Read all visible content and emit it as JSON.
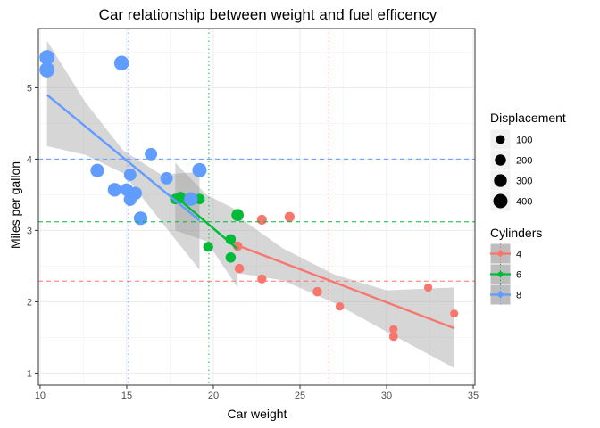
{
  "chart_data": {
    "type": "scatter",
    "title": "Car relationship between weight and fuel efficency",
    "xlabel": "Car weight",
    "ylabel": "Miles per gallon",
    "xlim": [
      9.9,
      35.1
    ],
    "ylim": [
      0.83,
      5.83
    ],
    "xticks": [
      10,
      15,
      20,
      25,
      30,
      35
    ],
    "yticks": [
      1,
      2,
      3,
      4,
      5
    ],
    "grid": true,
    "colors": {
      "4": "#F8766D",
      "6": "#00BA38",
      "8": "#619CFF"
    },
    "series": [
      {
        "name": "4",
        "points": [
          {
            "x": 22.8,
            "y": 2.32,
            "disp": 108
          },
          {
            "x": 24.4,
            "y": 3.19,
            "disp": 146.7
          },
          {
            "x": 22.8,
            "y": 3.15,
            "disp": 140.8
          },
          {
            "x": 32.4,
            "y": 2.2,
            "disp": 78.7
          },
          {
            "x": 30.4,
            "y": 1.615,
            "disp": 75.7
          },
          {
            "x": 33.9,
            "y": 1.835,
            "disp": 71.1
          },
          {
            "x": 21.5,
            "y": 2.465,
            "disp": 120.1
          },
          {
            "x": 27.3,
            "y": 1.935,
            "disp": 79
          },
          {
            "x": 26.0,
            "y": 2.14,
            "disp": 120.3
          },
          {
            "x": 30.4,
            "y": 1.513,
            "disp": 95.1
          },
          {
            "x": 21.4,
            "y": 2.78,
            "disp": 121
          }
        ],
        "fit": {
          "x": [
            21.4,
            33.9
          ],
          "y": [
            2.79,
            1.63
          ]
        },
        "band": {
          "x": [
            21.4,
            24,
            27,
            30,
            33.9
          ],
          "upper": [
            3.2,
            2.75,
            2.38,
            2.16,
            2.2
          ],
          "lower": [
            2.4,
            2.3,
            1.98,
            1.58,
            1.07
          ]
        }
      },
      {
        "name": "6",
        "points": [
          {
            "x": 21.0,
            "y": 2.62,
            "disp": 160
          },
          {
            "x": 21.0,
            "y": 2.875,
            "disp": 160
          },
          {
            "x": 21.4,
            "y": 3.215,
            "disp": 258
          },
          {
            "x": 18.1,
            "y": 3.46,
            "disp": 225
          },
          {
            "x": 19.2,
            "y": 3.44,
            "disp": 167.6
          },
          {
            "x": 17.8,
            "y": 3.44,
            "disp": 167.6
          },
          {
            "x": 19.7,
            "y": 2.77,
            "disp": 145
          }
        ],
        "fit": {
          "x": [
            17.8,
            21.4
          ],
          "y": [
            3.48,
            2.74
          ]
        },
        "band": {
          "x": [
            17.8,
            19.6,
            21.4
          ],
          "upper": [
            3.95,
            3.5,
            3.28
          ],
          "lower": [
            3.0,
            2.85,
            2.2
          ]
        }
      },
      {
        "name": "8",
        "points": [
          {
            "x": 18.7,
            "y": 3.44,
            "disp": 360
          },
          {
            "x": 14.3,
            "y": 3.57,
            "disp": 360
          },
          {
            "x": 16.4,
            "y": 4.07,
            "disp": 275.8
          },
          {
            "x": 17.3,
            "y": 3.73,
            "disp": 275.8
          },
          {
            "x": 15.2,
            "y": 3.78,
            "disp": 275.8
          },
          {
            "x": 10.4,
            "y": 5.25,
            "disp": 472
          },
          {
            "x": 10.4,
            "y": 5.424,
            "disp": 460
          },
          {
            "x": 14.7,
            "y": 5.345,
            "disp": 440
          },
          {
            "x": 15.5,
            "y": 3.52,
            "disp": 318
          },
          {
            "x": 15.2,
            "y": 3.435,
            "disp": 304
          },
          {
            "x": 13.3,
            "y": 3.84,
            "disp": 350
          },
          {
            "x": 19.2,
            "y": 3.845,
            "disp": 400
          },
          {
            "x": 15.8,
            "y": 3.17,
            "disp": 351
          },
          {
            "x": 15.0,
            "y": 3.57,
            "disp": 301
          }
        ],
        "fit": {
          "x": [
            10.4,
            19.2
          ],
          "y": [
            4.9,
            3.14
          ]
        },
        "band": {
          "x": [
            10.4,
            12.6,
            14.8,
            17.0,
            19.2
          ],
          "upper": [
            5.66,
            4.8,
            4.12,
            3.78,
            3.82
          ],
          "lower": [
            4.18,
            4.06,
            3.8,
            3.12,
            2.45
          ]
        }
      }
    ],
    "hlines": [
      {
        "group": "4",
        "y": 2.29
      },
      {
        "group": "6",
        "y": 3.12
      },
      {
        "group": "8",
        "y": 4.0
      }
    ],
    "vlines": [
      {
        "group": "4",
        "x": 26.66
      },
      {
        "group": "6",
        "x": 19.74
      },
      {
        "group": "8",
        "x": 15.1
      }
    ],
    "legend": {
      "placement": "right",
      "size_title": "Displacement",
      "size_entries": [
        {
          "label": "100",
          "value": 100
        },
        {
          "label": "200",
          "value": 200
        },
        {
          "label": "300",
          "value": 300
        },
        {
          "label": "400",
          "value": 400
        }
      ],
      "color_title": "Cylinders",
      "color_entries": [
        {
          "label": "4",
          "group": "4"
        },
        {
          "label": "6",
          "group": "6"
        },
        {
          "label": "8",
          "group": "8"
        }
      ]
    }
  }
}
